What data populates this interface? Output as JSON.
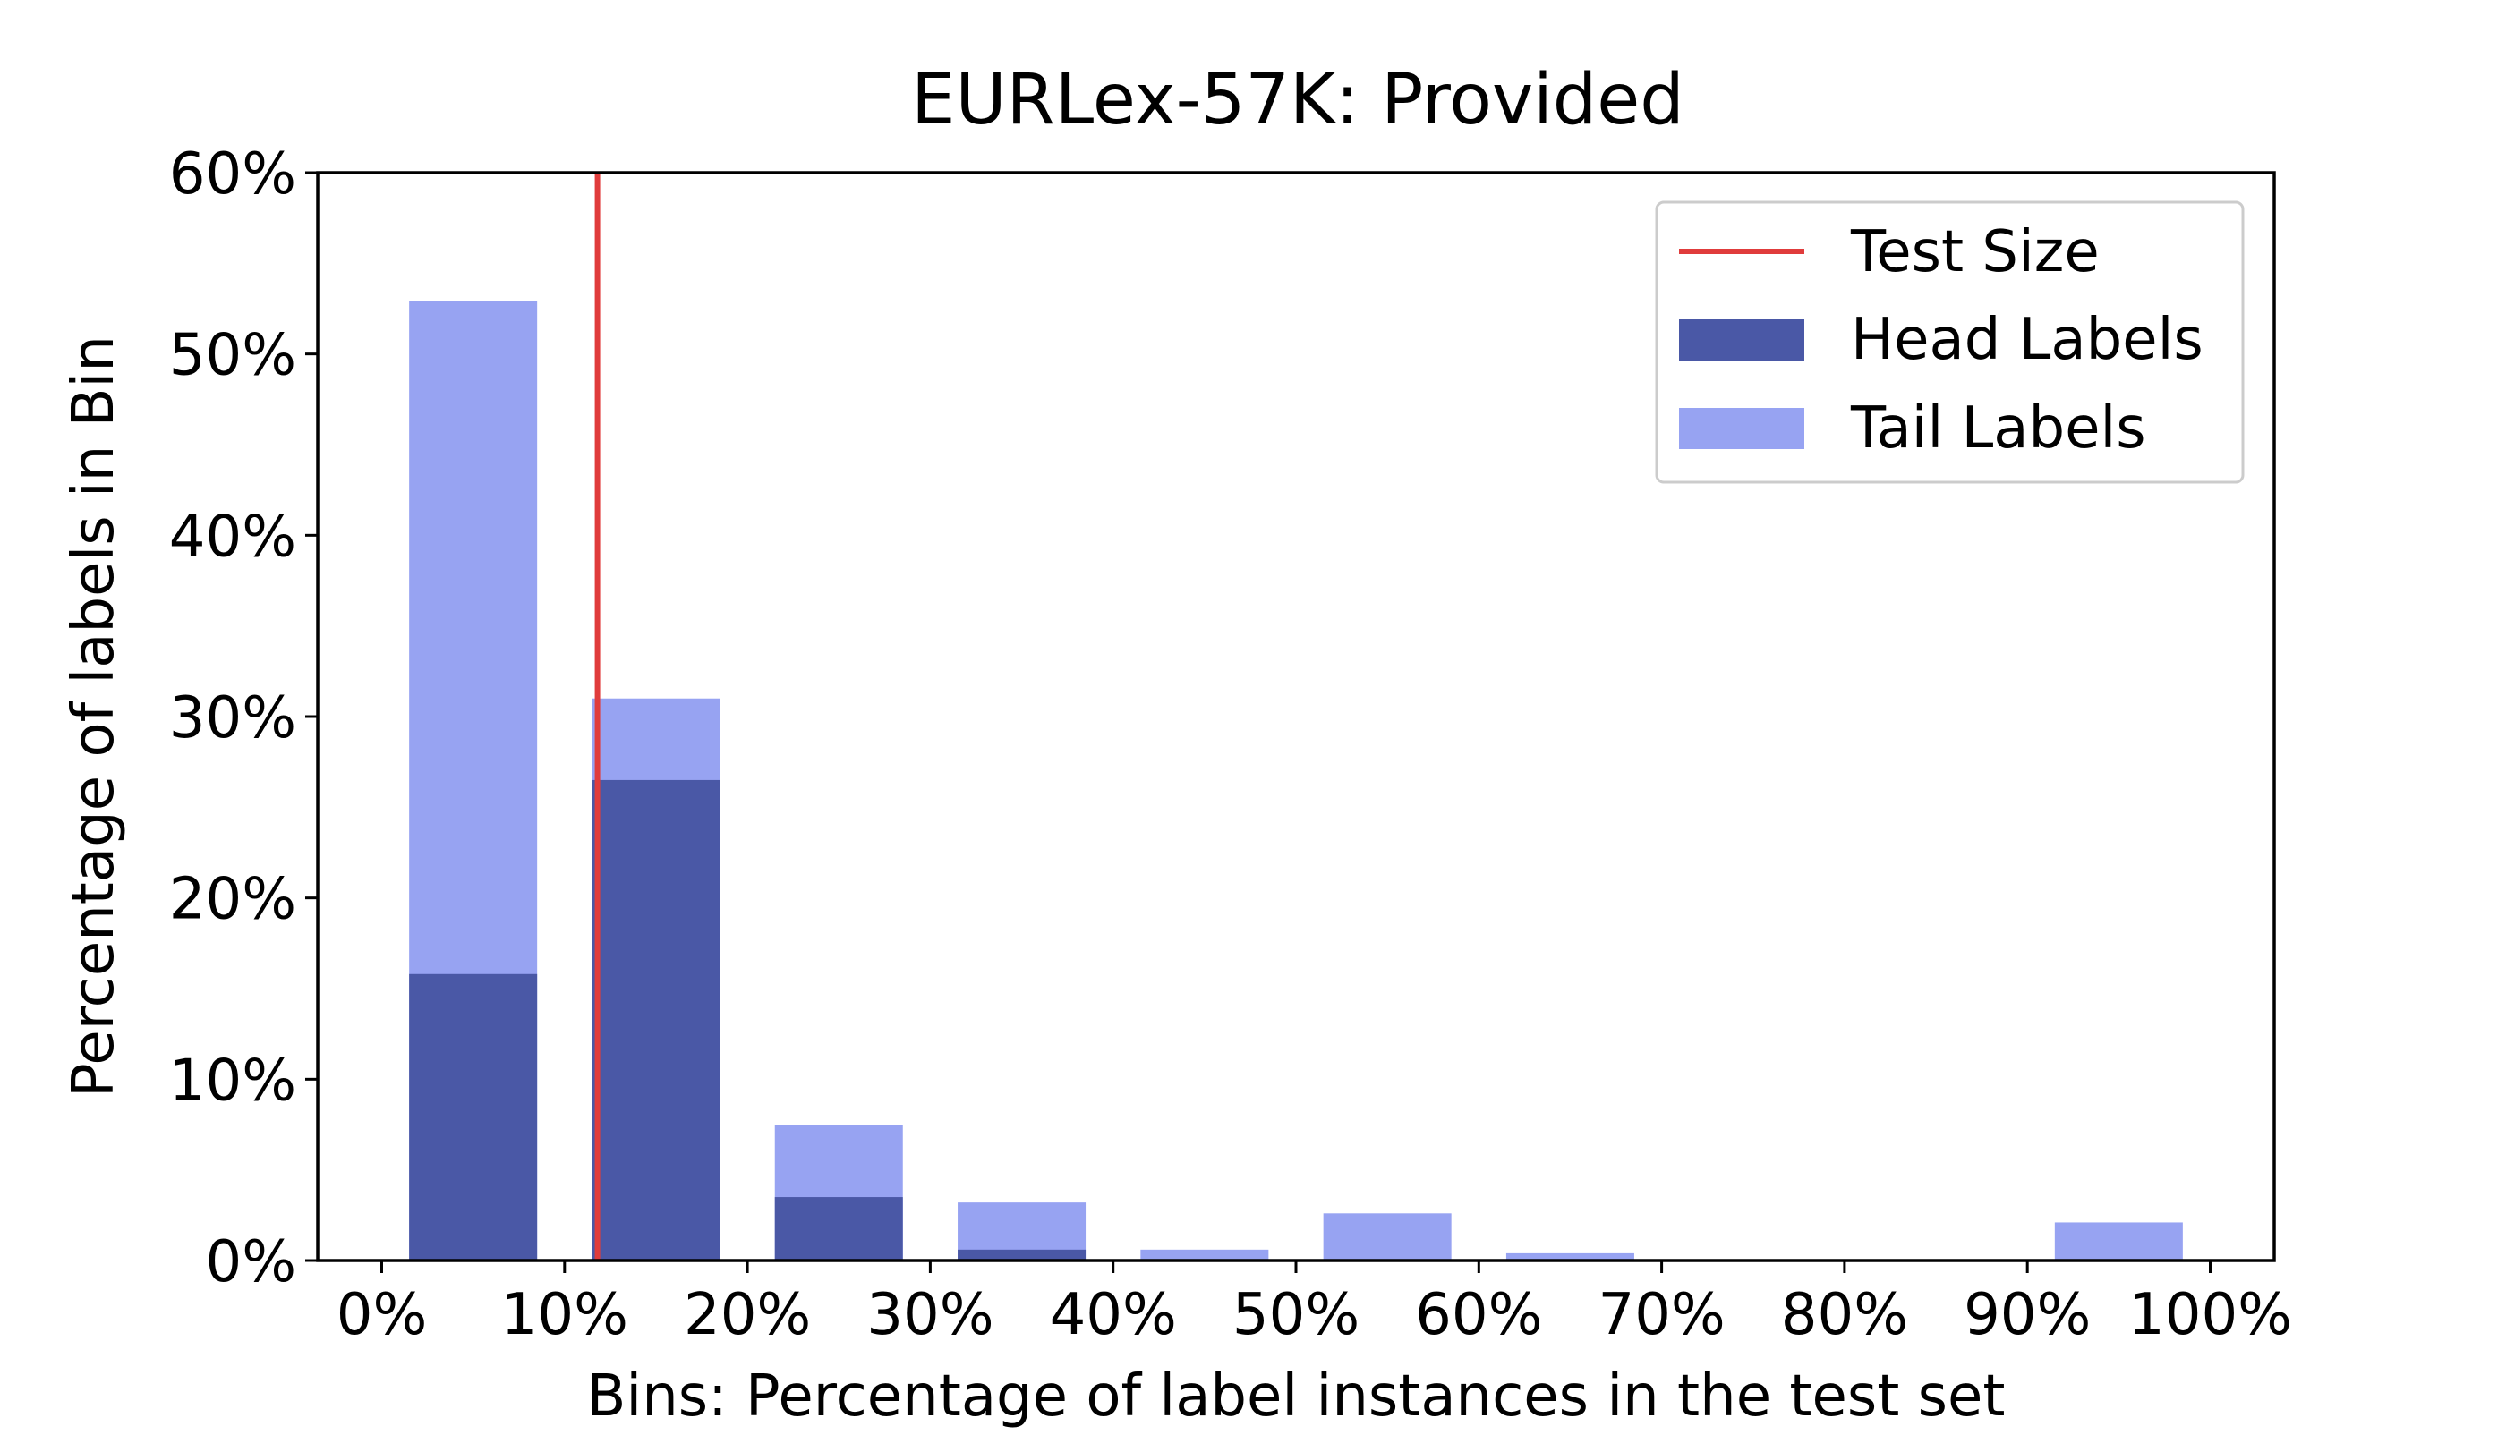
{
  "chart_data": {
    "type": "bar",
    "title": "EURLex-57K: Provided",
    "xlabel": "Bins: Percentage of label instances in the test set",
    "ylabel": "Percentage of labels in Bin",
    "xlim": [
      -3.5,
      103.5
    ],
    "ylim": [
      0,
      60
    ],
    "x_ticks": [
      0,
      10,
      20,
      30,
      40,
      50,
      60,
      70,
      80,
      90,
      100
    ],
    "x_tick_labels": [
      "0%",
      "10%",
      "20%",
      "30%",
      "40%",
      "50%",
      "60%",
      "70%",
      "80%",
      "90%",
      "100%"
    ],
    "y_ticks": [
      0,
      10,
      20,
      30,
      40,
      50,
      60
    ],
    "y_tick_labels": [
      "0%",
      "10%",
      "20%",
      "30%",
      "40%",
      "50%",
      "60%"
    ],
    "grid": false,
    "legend_position": "top-right",
    "bins": [
      {
        "start": 1.5,
        "end": 8.5,
        "head": 15.8,
        "tail": 52.9
      },
      {
        "start": 11.5,
        "end": 18.5,
        "head": 26.5,
        "tail": 31.0
      },
      {
        "start": 21.5,
        "end": 28.5,
        "head": 3.5,
        "tail": 7.5
      },
      {
        "start": 31.5,
        "end": 38.5,
        "head": 0.6,
        "tail": 3.2
      },
      {
        "start": 41.5,
        "end": 48.5,
        "head": 0.0,
        "tail": 0.6
      },
      {
        "start": 51.5,
        "end": 58.5,
        "head": 0.0,
        "tail": 2.6
      },
      {
        "start": 61.5,
        "end": 68.5,
        "head": 0.0,
        "tail": 0.4
      },
      {
        "start": 71.5,
        "end": 78.5,
        "head": 0.0,
        "tail": 0.0
      },
      {
        "start": 81.5,
        "end": 88.5,
        "head": 0.0,
        "tail": 0.0
      },
      {
        "start": 91.5,
        "end": 98.5,
        "head": 0.0,
        "tail": 2.1
      }
    ],
    "test_size_line": 11.8,
    "series": [
      {
        "name": "Test Size",
        "kind": "line",
        "color": "#e03c3c"
      },
      {
        "name": "Head Labels",
        "kind": "bar",
        "color": "#4a58a6"
      },
      {
        "name": "Tail Labels",
        "kind": "bar",
        "color": "#97a3f2"
      }
    ]
  }
}
